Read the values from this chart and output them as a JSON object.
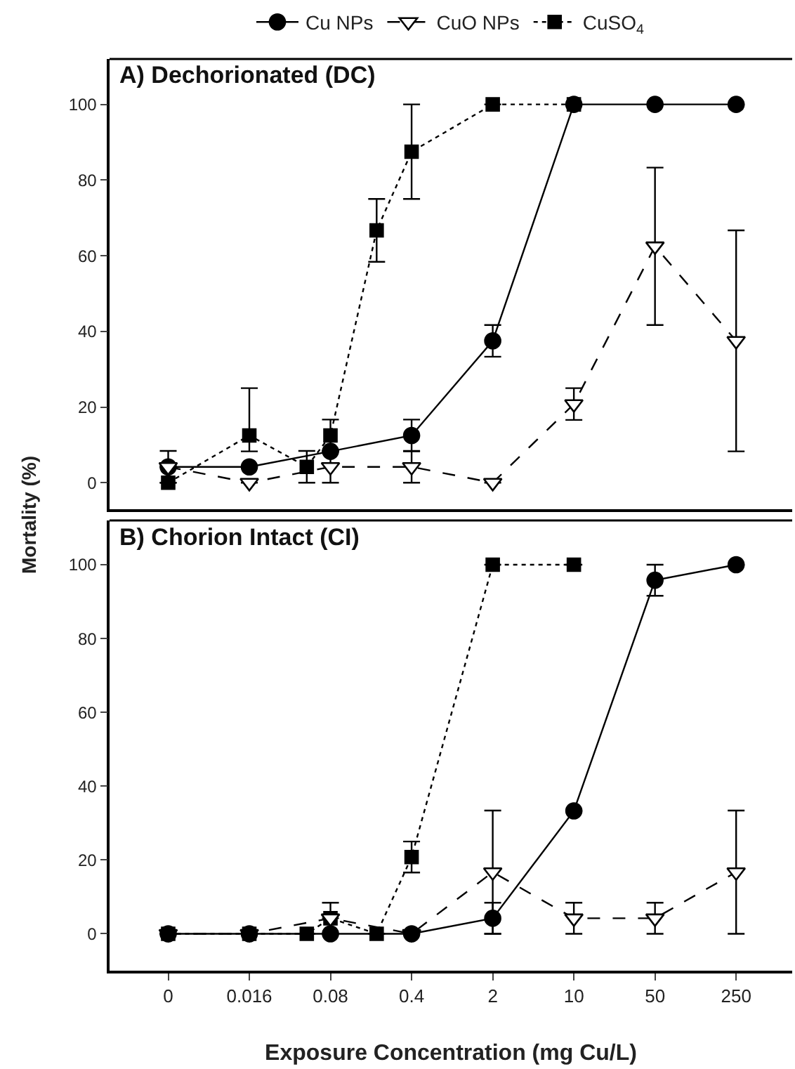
{
  "chart_data": [
    {
      "type": "line",
      "title": "A) Dechorionated (DC)",
      "ylabel": "Mortality (%)",
      "log": "x",
      "xlim": [
        0.001,
        760
      ],
      "ylim": [
        -7,
        112
      ],
      "yticks": [
        0,
        20,
        40,
        60,
        80,
        100
      ],
      "tick_labels": "y",
      "legend": "top",
      "grid": false,
      "series": [
        {
          "name": "Cu NPs",
          "color": "#000000",
          "marker": "circle",
          "line_style": "solid",
          "x": [
            0.0032,
            0.016,
            0.08,
            0.4,
            2,
            10,
            50,
            250
          ],
          "values": [
            4.2,
            4.2,
            8.3,
            12.5,
            37.5,
            100,
            100,
            100
          ],
          "errors": [
            null,
            null,
            null,
            4.2,
            4.2,
            null,
            null,
            null
          ]
        },
        {
          "name": "CuO NPs",
          "color": "#000000",
          "marker": "triangle",
          "line_style": "dashed",
          "x": [
            0.0032,
            0.016,
            0.08,
            0.4,
            2,
            10,
            50,
            250
          ],
          "values": [
            4.2,
            0,
            4.2,
            4.2,
            0,
            20.8,
            62.5,
            37.5
          ],
          "errors": [
            4.2,
            null,
            4.2,
            4.2,
            null,
            4.2,
            20.8,
            29.2
          ]
        },
        {
          "name": "CuSO$_{4}$",
          "color": "#000000",
          "marker": "square",
          "line_style": "dotted",
          "x": [
            0.0032,
            0.016,
            0.05,
            0.08,
            0.2,
            0.4,
            2,
            10
          ],
          "values": [
            0,
            12.5,
            4.2,
            12.5,
            66.7,
            87.5,
            100,
            100
          ],
          "errors": [
            null,
            [
              8.3,
              25
            ],
            4.2,
            4.2,
            8.3,
            12.5,
            null,
            null
          ]
        }
      ]
    },
    {
      "type": "line",
      "title": "B) Chorion Intact (CI)",
      "xlabel": "Exposure Concentration (mg Cu/L)",
      "log": "x",
      "xlim": [
        0.001,
        760
      ],
      "xticks": [
        {
          "value": 0.0032,
          "label": "0"
        },
        0.016,
        0.08,
        0.4,
        2,
        10,
        50,
        250
      ],
      "ylim": [
        -10,
        112
      ],
      "yticks": [
        0,
        20,
        40,
        60,
        80,
        100
      ],
      "grid": false,
      "series": [
        {
          "color": "#000000",
          "marker": "square",
          "line_style": "dotted",
          "x": [
            0.0032,
            0.016,
            0.05,
            0.08,
            0.2,
            0.4,
            2,
            10
          ],
          "values": [
            0,
            0,
            0,
            4.2,
            0,
            20.8,
            100,
            100
          ],
          "errors": [
            null,
            null,
            null,
            4.2,
            null,
            4.2,
            null,
            null
          ]
        },
        {
          "color": "#000000",
          "marker": "triangle",
          "line_style": "dashed",
          "x": [
            0.0032,
            0.016,
            0.08,
            0.4,
            2,
            10,
            50,
            250
          ],
          "values": [
            0,
            0,
            4.2,
            0,
            16.7,
            4.2,
            4.2,
            16.7
          ],
          "errors": [
            null,
            null,
            null,
            null,
            16.7,
            4.2,
            4.2,
            16.7
          ]
        },
        {
          "color": "#000000",
          "marker": "circle",
          "line_style": "solid",
          "x": [
            0.0032,
            0.016,
            0.08,
            0.4,
            2,
            10,
            50,
            250
          ],
          "values": [
            0,
            0,
            0,
            0,
            4.2,
            33.3,
            95.8,
            100
          ],
          "errors": [
            null,
            null,
            null,
            null,
            4.2,
            null,
            4.2,
            null
          ]
        }
      ]
    }
  ]
}
